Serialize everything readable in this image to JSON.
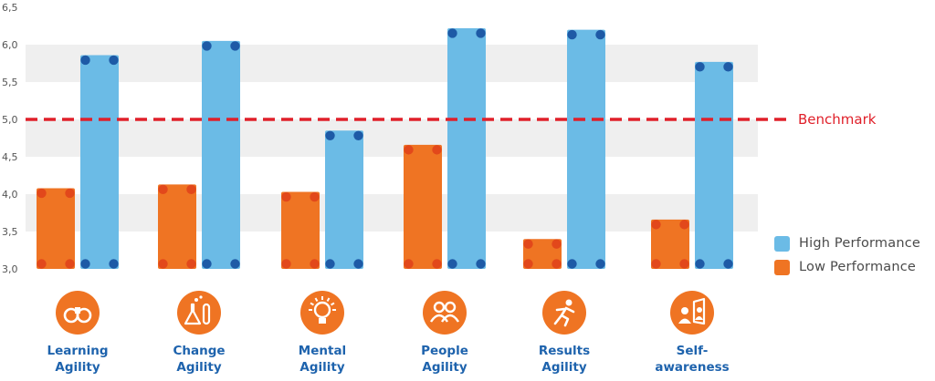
{
  "chart_data": {
    "type": "bar",
    "categories": [
      {
        "line1": "Learning",
        "line2": "Agility",
        "icon": "binoculars-icon"
      },
      {
        "line1": "Change",
        "line2": "Agility",
        "icon": "flask-icon"
      },
      {
        "line1": "Mental",
        "line2": "Agility",
        "icon": "lightbulb-icon"
      },
      {
        "line1": "People",
        "line2": "Agility",
        "icon": "people-icon"
      },
      {
        "line1": "Results",
        "line2": "Agility",
        "icon": "runner-icon"
      },
      {
        "line1": "Self-",
        "line2": "awareness",
        "icon": "mirror-person-icon"
      }
    ],
    "series": [
      {
        "name": "Low Performance",
        "color": "#ef7423",
        "values": [
          4.08,
          4.13,
          4.03,
          4.66,
          3.4,
          3.66
        ]
      },
      {
        "name": "High Performance",
        "color": "#6bbbe6",
        "values": [
          5.86,
          6.05,
          4.85,
          6.22,
          6.2,
          5.77
        ]
      }
    ],
    "ylim": [
      3.0,
      6.5
    ],
    "yticks": [
      "3,0",
      "3,5",
      "4,0",
      "4,5",
      "5,0",
      "5,5",
      "6,0",
      "6,5"
    ],
    "benchmark": {
      "value": 5.0,
      "label": "Benchmark",
      "color": "#e0202a"
    },
    "legend": {
      "position": "right",
      "items": [
        "High Performance",
        "Low Performance"
      ]
    },
    "grid": "alternating-bands",
    "dot_color": "#1e5aa6",
    "icon_bg": "#ef7423"
  }
}
